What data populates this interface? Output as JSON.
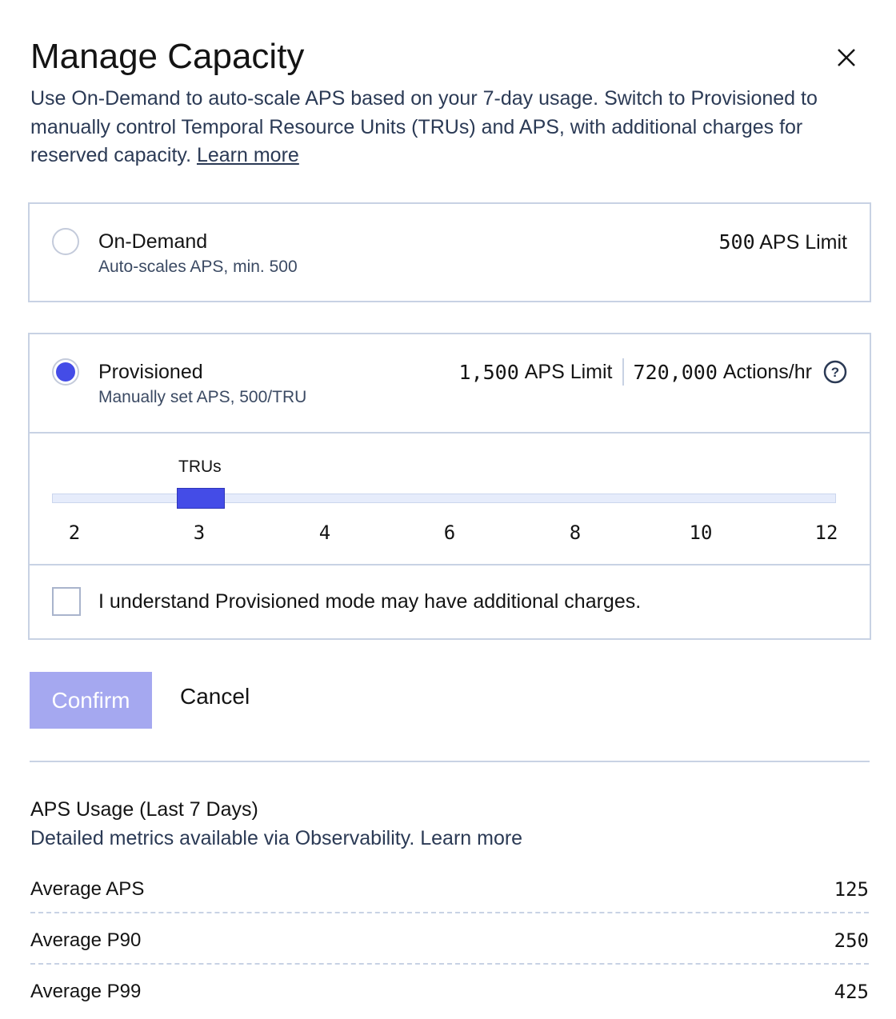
{
  "title": "Manage Capacity",
  "description": "Use On-Demand to auto-scale APS based on your 7-day usage. Switch to Provisioned to manually control Temporal Resource Units (TRUs) and APS, with additional charges for reserved capacity.",
  "learn_more": "Learn more",
  "on_demand": {
    "label": "On-Demand",
    "sublabel": "Auto-scales APS, min. 500",
    "limit_value": "500",
    "limit_label": "APS Limit",
    "selected": false
  },
  "provisioned": {
    "label": "Provisioned",
    "sublabel": "Manually set APS, 500/TRU",
    "limit_value": "1,500",
    "limit_label": "APS Limit",
    "actions_value": "720,000",
    "actions_label": "Actions/hr",
    "selected": true
  },
  "slider": {
    "label": "TRUs",
    "ticks": [
      "2",
      "3",
      "4",
      "6",
      "8",
      "10",
      "12"
    ],
    "value": "3"
  },
  "acknowledge": {
    "label": "I understand Provisioned mode may have additional charges.",
    "checked": false
  },
  "buttons": {
    "confirm": "Confirm",
    "cancel": "Cancel"
  },
  "usage": {
    "title": "APS Usage (Last 7 Days)",
    "subtitle": "Detailed metrics available via Observability. Learn more",
    "rows": [
      {
        "label": "Average APS",
        "value": "125"
      },
      {
        "label": "Average P90",
        "value": "250"
      },
      {
        "label": "Average P99",
        "value": "425"
      }
    ]
  },
  "colors": {
    "accent": "#444ce7",
    "confirm_disabled": "#a5a8f0",
    "border": "#c8d2e4"
  }
}
